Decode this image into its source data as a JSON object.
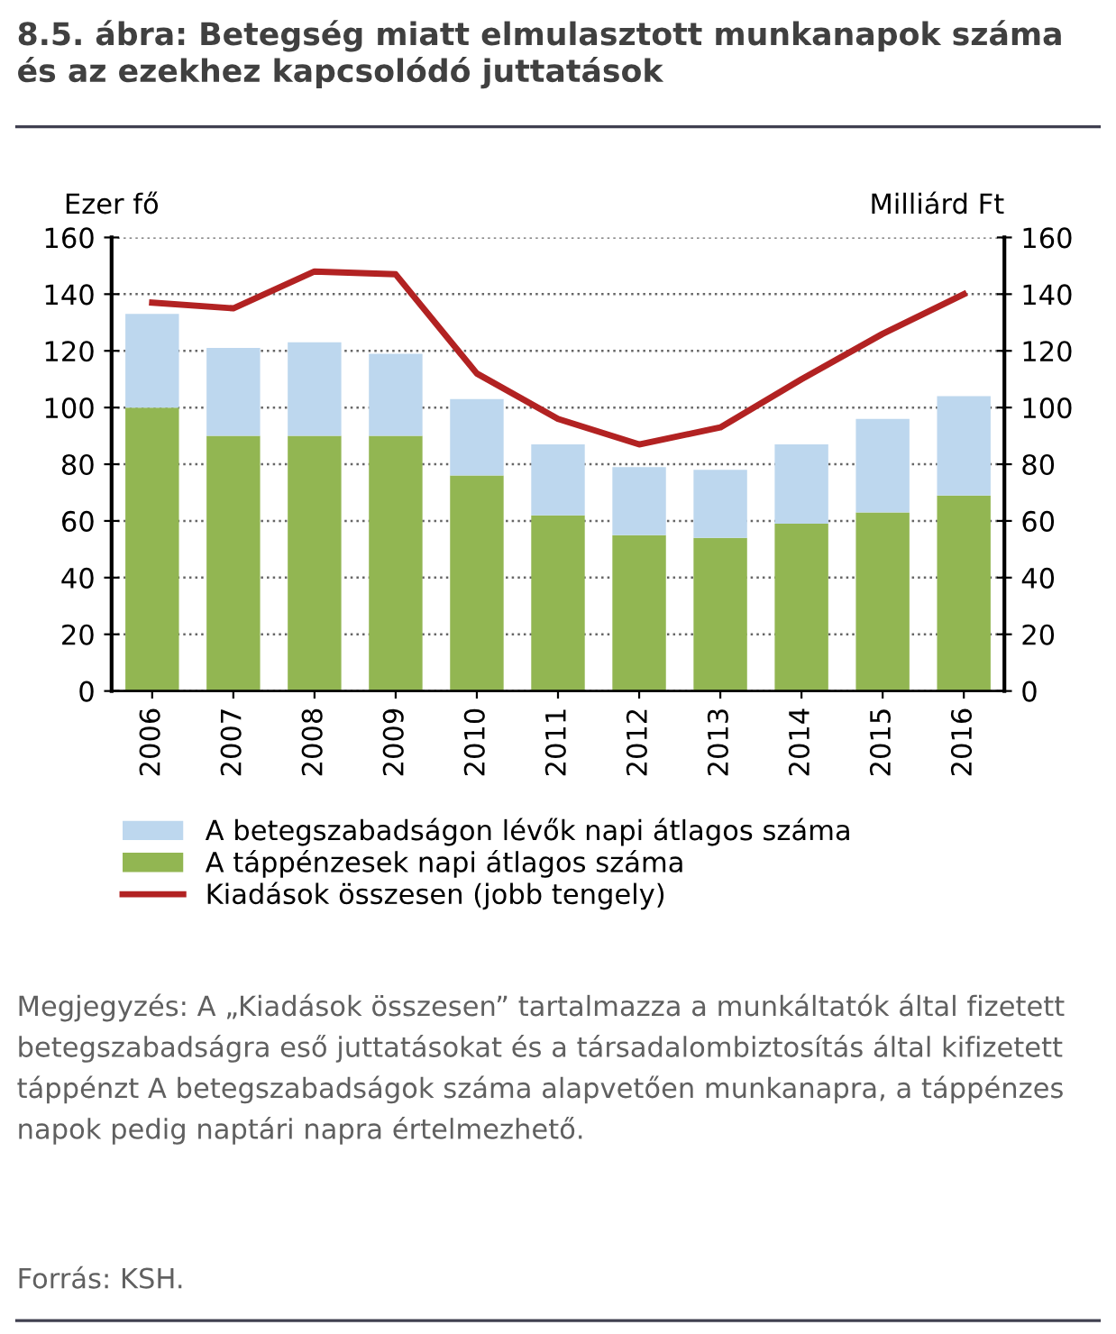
{
  "chart_data": {
    "type": "bar",
    "title": "8.5. ábra: Betegség miatt elmulasztott munkanapok száma és az ezekhez kapcsolódó juttatások",
    "categories": [
      "2006",
      "2007",
      "2008",
      "2009",
      "2010",
      "2011",
      "2012",
      "2013",
      "2014",
      "2015",
      "2016"
    ],
    "stacked": true,
    "series": [
      {
        "name": "A táppénzesek napi átlagos száma",
        "color": "#92b652",
        "values": [
          100,
          90,
          90,
          90,
          76,
          62,
          55,
          54,
          59,
          63,
          69
        ]
      },
      {
        "name": "A betegszabadságon lévők napi átlagos száma",
        "color": "#bdd7ee",
        "values": [
          33,
          31,
          33,
          29,
          27,
          25,
          24,
          24,
          28,
          33,
          35
        ]
      },
      {
        "name": "Kiadások összesen (jobb tengely)",
        "type": "line",
        "axis": "y2",
        "color": "#b22222",
        "values": [
          137,
          135,
          148,
          147,
          112,
          96,
          87,
          93,
          110,
          126,
          140
        ]
      }
    ],
    "ylabel": "Ezer fő",
    "y2label": "Milliárd Ft",
    "ylim": [
      0,
      160
    ],
    "yticks": [
      0,
      20,
      40,
      60,
      80,
      100,
      120,
      140,
      160
    ],
    "y2lim": [
      0,
      160
    ],
    "y2ticks": [
      0,
      20,
      40,
      60,
      80,
      100,
      120,
      140,
      160
    ],
    "grid": "y",
    "legend": "bottom",
    "marker": "none",
    "line_style": "solid",
    "annotations": [
      "Megjegyzés: A „Kiadások összesen” tartalmazza a munkáltatók által fizetett betegszabadságra eső juttatásokat és a társadalombiztosítás által kifizetett táppénzt A betegszabadságok száma alapvetően munkanapra, a táppénzes napok pedig naptári napra értelmezhető.",
      "Forrás: KSH."
    ]
  }
}
